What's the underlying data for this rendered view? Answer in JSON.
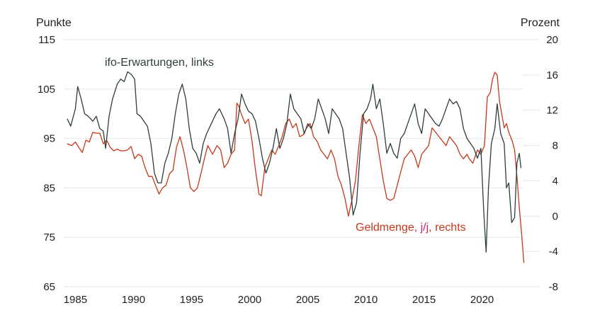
{
  "chart_data": {
    "type": "line",
    "left_axis": {
      "unit": "Punkte",
      "ticks": [
        115,
        105,
        95,
        85,
        75,
        65
      ],
      "ylim": [
        65,
        115
      ]
    },
    "right_axis": {
      "unit": "Prozent",
      "ticks": [
        20,
        16,
        12,
        8,
        4,
        0,
        -4,
        -8
      ],
      "ylim": [
        -8,
        20
      ]
    },
    "x_axis": {
      "ticks": [
        1985,
        1990,
        1995,
        2000,
        2005,
        2010,
        2015,
        2020
      ],
      "xlim": [
        1984,
        2023.5
      ]
    },
    "grid": "horizontal",
    "series": [
      {
        "name": "ifo-Erwartungen, links",
        "label_parts": {
          "main": "ifo-Erwartungen, links"
        },
        "axis": "left",
        "color": "#2f3e3b",
        "points": [
          [
            1984.3,
            99
          ],
          [
            1984.6,
            97.5
          ],
          [
            1985.0,
            101
          ],
          [
            1985.2,
            105.5
          ],
          [
            1985.5,
            103
          ],
          [
            1985.8,
            100
          ],
          [
            1986.1,
            99.5
          ],
          [
            1986.5,
            98.5
          ],
          [
            1986.8,
            99.5
          ],
          [
            1987.1,
            97
          ],
          [
            1987.4,
            96.5
          ],
          [
            1987.6,
            93
          ],
          [
            1987.9,
            99.5
          ],
          [
            1988.2,
            103
          ],
          [
            1988.6,
            106
          ],
          [
            1988.9,
            107
          ],
          [
            1989.2,
            106.5
          ],
          [
            1989.5,
            108.5
          ],
          [
            1989.8,
            108
          ],
          [
            1990.1,
            107
          ],
          [
            1990.3,
            100
          ],
          [
            1990.6,
            99.5
          ],
          [
            1990.9,
            98.5
          ],
          [
            1991.2,
            97.5
          ],
          [
            1991.5,
            94
          ],
          [
            1991.8,
            88
          ],
          [
            1992.1,
            86
          ],
          [
            1992.4,
            86
          ],
          [
            1992.7,
            90
          ],
          [
            1993.0,
            92
          ],
          [
            1993.3,
            95
          ],
          [
            1993.6,
            100
          ],
          [
            1993.9,
            104
          ],
          [
            1994.2,
            106
          ],
          [
            1994.5,
            103
          ],
          [
            1994.8,
            97
          ],
          [
            1995.1,
            93
          ],
          [
            1995.4,
            92
          ],
          [
            1995.7,
            90
          ],
          [
            1996.0,
            94
          ],
          [
            1996.3,
            96
          ],
          [
            1996.7,
            98
          ],
          [
            1997.1,
            100
          ],
          [
            1997.4,
            101
          ],
          [
            1997.8,
            99
          ],
          [
            1998.1,
            97
          ],
          [
            1998.4,
            92
          ],
          [
            1998.7,
            96
          ],
          [
            1999.0,
            99
          ],
          [
            1999.3,
            104
          ],
          [
            1999.6,
            102
          ],
          [
            1999.9,
            100.5
          ],
          [
            2000.2,
            100
          ],
          [
            2000.5,
            98.5
          ],
          [
            2000.8,
            95
          ],
          [
            2001.1,
            91
          ],
          [
            2001.4,
            88
          ],
          [
            2001.7,
            90
          ],
          [
            2002.0,
            93
          ],
          [
            2002.3,
            97
          ],
          [
            2002.6,
            93
          ],
          [
            2002.9,
            95
          ],
          [
            2003.2,
            98
          ],
          [
            2003.5,
            104
          ],
          [
            2003.8,
            101
          ],
          [
            2004.1,
            100
          ],
          [
            2004.4,
            99
          ],
          [
            2004.7,
            96
          ],
          [
            2005.0,
            98
          ],
          [
            2005.3,
            97
          ],
          [
            2005.6,
            99
          ],
          [
            2005.9,
            103
          ],
          [
            2006.2,
            101
          ],
          [
            2006.5,
            99
          ],
          [
            2006.8,
            96
          ],
          [
            2007.1,
            101
          ],
          [
            2007.4,
            100
          ],
          [
            2007.7,
            99
          ],
          [
            2008.0,
            97
          ],
          [
            2008.3,
            92
          ],
          [
            2008.6,
            87
          ],
          [
            2008.9,
            79.5
          ],
          [
            2009.2,
            82
          ],
          [
            2009.5,
            92
          ],
          [
            2009.8,
            100
          ],
          [
            2010.1,
            101
          ],
          [
            2010.4,
            103
          ],
          [
            2010.6,
            106
          ],
          [
            2010.9,
            101
          ],
          [
            2011.2,
            103
          ],
          [
            2011.5,
            98
          ],
          [
            2011.8,
            92
          ],
          [
            2012.1,
            94
          ],
          [
            2012.4,
            92
          ],
          [
            2012.7,
            91
          ],
          [
            2013.0,
            95
          ],
          [
            2013.3,
            96
          ],
          [
            2013.6,
            98
          ],
          [
            2013.9,
            100
          ],
          [
            2014.2,
            102
          ],
          [
            2014.5,
            98
          ],
          [
            2014.8,
            96
          ],
          [
            2015.1,
            101
          ],
          [
            2015.4,
            100
          ],
          [
            2015.7,
            99
          ],
          [
            2016.0,
            98
          ],
          [
            2016.3,
            97.5
          ],
          [
            2016.6,
            99
          ],
          [
            2016.9,
            101
          ],
          [
            2017.2,
            103
          ],
          [
            2017.5,
            102
          ],
          [
            2017.8,
            102.5
          ],
          [
            2018.1,
            101
          ],
          [
            2018.4,
            97
          ],
          [
            2018.7,
            95
          ],
          [
            2019.0,
            94
          ],
          [
            2019.3,
            93
          ],
          [
            2019.6,
            91
          ],
          [
            2019.9,
            93
          ],
          [
            2020.15,
            80
          ],
          [
            2020.35,
            72
          ],
          [
            2020.55,
            85
          ],
          [
            2020.8,
            94
          ],
          [
            2021.1,
            97
          ],
          [
            2021.3,
            102
          ],
          [
            2021.6,
            96
          ],
          [
            2021.9,
            94
          ],
          [
            2022.1,
            85
          ],
          [
            2022.3,
            86
          ],
          [
            2022.55,
            78
          ],
          [
            2022.8,
            79
          ],
          [
            2023.0,
            90
          ],
          [
            2023.2,
            92
          ],
          [
            2023.35,
            89
          ]
        ]
      },
      {
        "name": "Geldmenge, j/j, rechts",
        "label_parts": {
          "before": "Geldmenge, ",
          "highlight": "j/j",
          "after": ", rechts"
        },
        "axis": "right",
        "color": "#c6381b",
        "highlight_color": "#d6246b",
        "points": [
          [
            1984.3,
            8.2
          ],
          [
            1984.7,
            8
          ],
          [
            1985.0,
            8.4
          ],
          [
            1985.3,
            7.8
          ],
          [
            1985.6,
            7.2
          ],
          [
            1985.9,
            8.6
          ],
          [
            1986.2,
            8.4
          ],
          [
            1986.5,
            9.5
          ],
          [
            1986.8,
            9.4
          ],
          [
            1987.1,
            9.4
          ],
          [
            1987.4,
            8.2
          ],
          [
            1987.7,
            8.6
          ],
          [
            1988.0,
            7.8
          ],
          [
            1988.3,
            7.4
          ],
          [
            1988.6,
            7.6
          ],
          [
            1988.9,
            7.4
          ],
          [
            1989.2,
            7.4
          ],
          [
            1989.5,
            7.5
          ],
          [
            1989.8,
            7.9
          ],
          [
            1990.1,
            6.5
          ],
          [
            1990.4,
            7.0
          ],
          [
            1990.7,
            6.8
          ],
          [
            1991.0,
            5.5
          ],
          [
            1991.3,
            4.5
          ],
          [
            1991.6,
            4.5
          ],
          [
            1991.9,
            3.5
          ],
          [
            1992.2,
            2.5
          ],
          [
            1992.5,
            3.2
          ],
          [
            1992.8,
            3.5
          ],
          [
            1993.1,
            4.8
          ],
          [
            1993.4,
            5.2
          ],
          [
            1993.7,
            7.8
          ],
          [
            1994.0,
            9.0
          ],
          [
            1994.3,
            7.5
          ],
          [
            1994.6,
            5.5
          ],
          [
            1994.9,
            3.2
          ],
          [
            1995.2,
            2.8
          ],
          [
            1995.5,
            3.2
          ],
          [
            1995.8,
            4.8
          ],
          [
            1996.1,
            6.5
          ],
          [
            1996.4,
            8.0
          ],
          [
            1996.8,
            7.0
          ],
          [
            1997.2,
            8.0
          ],
          [
            1997.5,
            7.5
          ],
          [
            1997.8,
            5.5
          ],
          [
            1998.1,
            6.0
          ],
          [
            1998.4,
            7.0
          ],
          [
            1998.7,
            7.5
          ],
          [
            1998.9,
            12.8
          ],
          [
            1999.05,
            12.5
          ],
          [
            1999.3,
            11.5
          ],
          [
            1999.6,
            10.5
          ],
          [
            1999.9,
            11.0
          ],
          [
            2000.2,
            8.5
          ],
          [
            2000.5,
            5.2
          ],
          [
            2000.8,
            2.5
          ],
          [
            2001.0,
            2.3
          ],
          [
            2001.3,
            5.5
          ],
          [
            2001.6,
            6.5
          ],
          [
            2001.9,
            7.5
          ],
          [
            2002.2,
            7.0
          ],
          [
            2002.5,
            8.0
          ],
          [
            2002.8,
            9.0
          ],
          [
            2003.1,
            10.5
          ],
          [
            2003.4,
            11.0
          ],
          [
            2003.7,
            10.0
          ],
          [
            2004.0,
            10.5
          ],
          [
            2004.3,
            9.0
          ],
          [
            2004.6,
            9.2
          ],
          [
            2004.9,
            10.0
          ],
          [
            2005.2,
            10.5
          ],
          [
            2005.5,
            9.0
          ],
          [
            2005.8,
            8.5
          ],
          [
            2006.1,
            7.5
          ],
          [
            2006.4,
            7.0
          ],
          [
            2006.7,
            6.5
          ],
          [
            2007.0,
            7.5
          ],
          [
            2007.3,
            6.5
          ],
          [
            2007.6,
            4.5
          ],
          [
            2007.9,
            3.5
          ],
          [
            2008.2,
            2.0
          ],
          [
            2008.5,
            0.0
          ],
          [
            2008.8,
            1.8
          ],
          [
            2009.1,
            4.0
          ],
          [
            2009.4,
            8.0
          ],
          [
            2009.7,
            11.5
          ],
          [
            2010.0,
            10.5
          ],
          [
            2010.3,
            11.0
          ],
          [
            2010.6,
            10.0
          ],
          [
            2010.9,
            9.0
          ],
          [
            2011.2,
            6.5
          ],
          [
            2011.5,
            4.0
          ],
          [
            2011.8,
            2.0
          ],
          [
            2012.1,
            1.8
          ],
          [
            2012.4,
            2.0
          ],
          [
            2012.7,
            3.5
          ],
          [
            2013.0,
            5.0
          ],
          [
            2013.3,
            6.5
          ],
          [
            2013.6,
            7.0
          ],
          [
            2013.9,
            7.5
          ],
          [
            2014.2,
            6.8
          ],
          [
            2014.5,
            5.5
          ],
          [
            2014.8,
            7.0
          ],
          [
            2015.1,
            7.5
          ],
          [
            2015.4,
            8.0
          ],
          [
            2015.7,
            10.0
          ],
          [
            2016.0,
            9.5
          ],
          [
            2016.3,
            9.0
          ],
          [
            2016.6,
            8.5
          ],
          [
            2016.9,
            8.0
          ],
          [
            2017.2,
            9.0
          ],
          [
            2017.5,
            8.5
          ],
          [
            2017.8,
            8.0
          ],
          [
            2018.1,
            7.0
          ],
          [
            2018.4,
            6.5
          ],
          [
            2018.7,
            7.0
          ],
          [
            2018.9,
            6.5
          ],
          [
            2019.2,
            6.0
          ],
          [
            2019.6,
            7.5
          ],
          [
            2019.9,
            7.0
          ],
          [
            2020.2,
            8.0
          ],
          [
            2020.45,
            13.5
          ],
          [
            2020.7,
            14.0
          ],
          [
            2020.9,
            15.5
          ],
          [
            2021.1,
            16.3
          ],
          [
            2021.3,
            16.0
          ],
          [
            2021.5,
            13.0
          ],
          [
            2021.7,
            11.5
          ],
          [
            2021.9,
            10.0
          ],
          [
            2022.1,
            10.5
          ],
          [
            2022.3,
            9.5
          ],
          [
            2022.6,
            8.5
          ],
          [
            2022.8,
            7.5
          ],
          [
            2023.0,
            4.5
          ],
          [
            2023.2,
            1.0
          ],
          [
            2023.4,
            -2.0
          ],
          [
            2023.55,
            -4.5
          ],
          [
            2023.6,
            -5.3
          ]
        ]
      }
    ]
  }
}
